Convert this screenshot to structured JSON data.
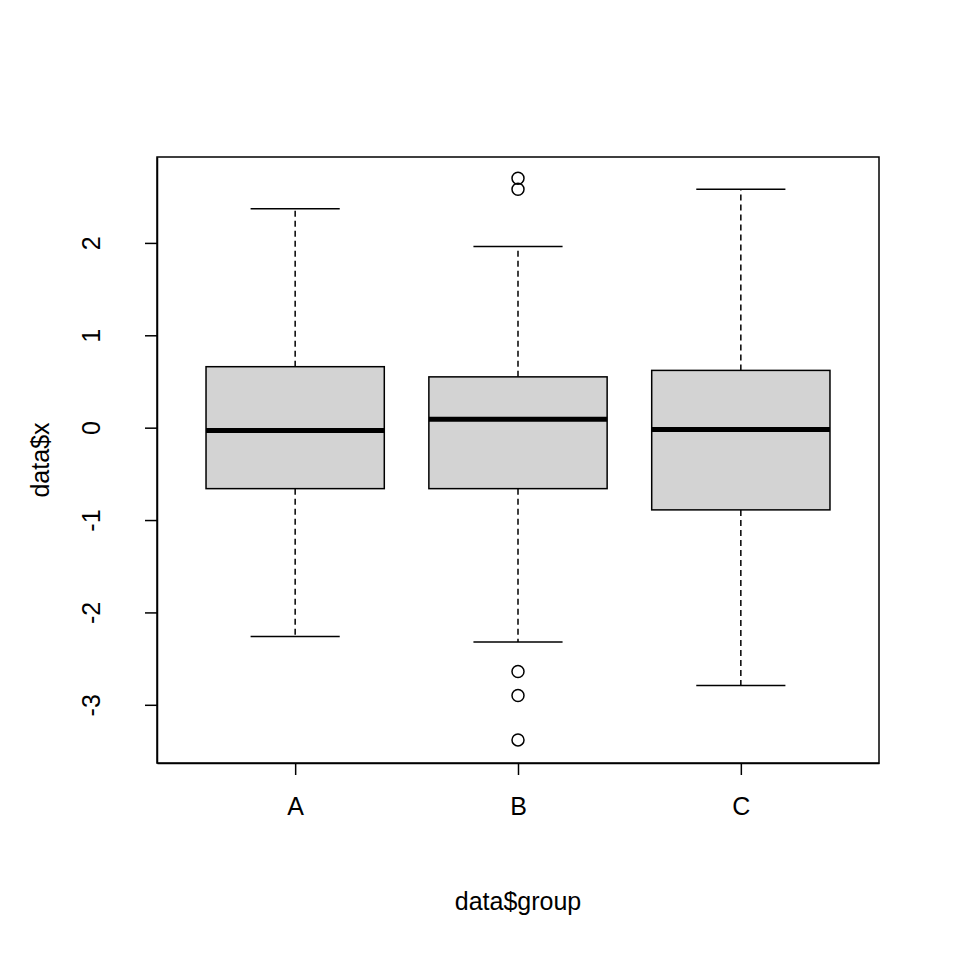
{
  "chart_data": {
    "type": "box",
    "x_label": "data$group",
    "y_label": "data$x",
    "categories": [
      "A",
      "B",
      "C"
    ],
    "color": "#d3d3d3",
    "stats": [
      {
        "min": -2.26,
        "q1": -0.66,
        "median": -0.03,
        "q3": 0.66,
        "max": 2.37,
        "outliers": []
      },
      {
        "min": -2.32,
        "q1": -0.66,
        "median": 0.09,
        "q3": 0.55,
        "max": 1.96,
        "outliers": [
          2.7,
          2.58,
          -2.64,
          -2.9,
          -3.38
        ]
      },
      {
        "min": -2.79,
        "q1": -0.89,
        "median": -0.02,
        "q3": 0.62,
        "max": 2.58,
        "outliers": []
      }
    ],
    "ylim": [
      -3.63,
      2.93
    ],
    "yticks": [
      -3,
      -2,
      -1,
      0,
      1,
      2
    ]
  }
}
